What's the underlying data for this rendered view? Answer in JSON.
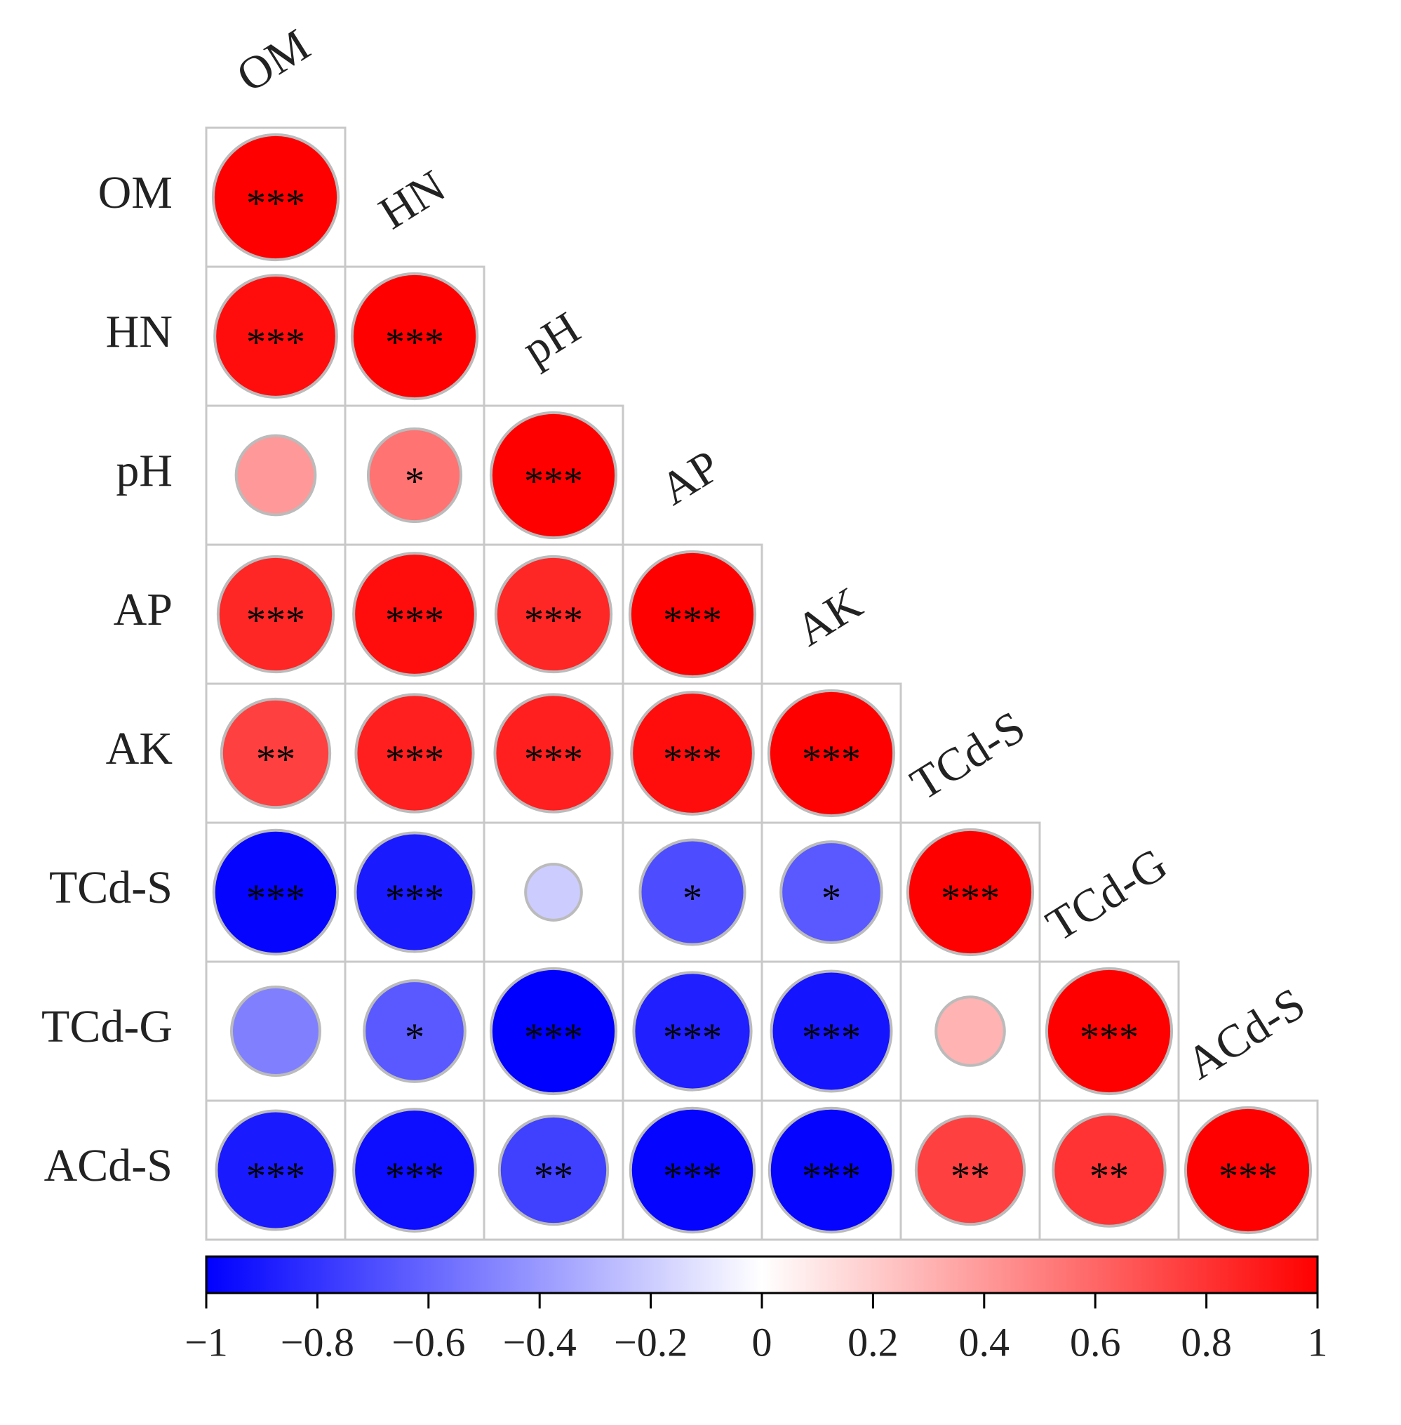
{
  "chart_data": {
    "type": "correlation",
    "variables": [
      "OM",
      "HN",
      "pH",
      "AP",
      "AK",
      "TCd-S",
      "TCd-G",
      "ACd-S"
    ],
    "values": [
      [
        1
      ],
      [
        0.95,
        1
      ],
      [
        0.4,
        0.55,
        1
      ],
      [
        0.85,
        0.95,
        0.85,
        1
      ],
      [
        0.75,
        0.88,
        0.88,
        0.95,
        1
      ],
      [
        -0.98,
        -0.9,
        -0.2,
        -0.7,
        -0.65,
        1
      ],
      [
        -0.5,
        -0.65,
        -1,
        -0.88,
        -0.92,
        0.3,
        1
      ],
      [
        -0.9,
        -0.95,
        -0.75,
        -0.98,
        -0.98,
        0.75,
        0.8,
        1
      ]
    ],
    "significance": [
      [
        "***"
      ],
      [
        "***",
        "***"
      ],
      [
        null,
        "*",
        "***"
      ],
      [
        "***",
        "***",
        "***",
        "***"
      ],
      [
        "**",
        "***",
        "***",
        "***",
        "***"
      ],
      [
        "***",
        "***",
        null,
        "*",
        "*",
        "***"
      ],
      [
        null,
        "*",
        "***",
        "***",
        "***",
        null,
        "***"
      ],
      [
        "***",
        "***",
        "**",
        "***",
        "***",
        "**",
        "**",
        "***"
      ]
    ],
    "colors": [
      "#0000ff",
      "#ffffff",
      "#ff0000"
    ],
    "xlim": [
      -1,
      1
    ],
    "xticks": [
      {
        "value": -1,
        "label": "−1"
      },
      {
        "value": -0.8,
        "label": "−0.8"
      },
      {
        "value": -0.6,
        "label": "−0.6"
      },
      {
        "value": -0.4,
        "label": "−0.4"
      },
      {
        "value": -0.2,
        "label": "−0.2"
      },
      0,
      0.2,
      0.4,
      0.6,
      0.8,
      1
    ]
  }
}
